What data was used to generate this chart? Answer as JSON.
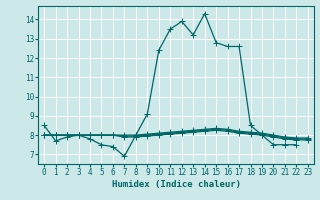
{
  "xlabel": "Humidex (Indice chaleur)",
  "background_color": "#cce8e8",
  "grid_color": "#ffffff",
  "line_color": "#006666",
  "xlim": [
    -0.5,
    23.5
  ],
  "ylim": [
    6.5,
    14.7
  ],
  "xticks": [
    0,
    1,
    2,
    3,
    4,
    5,
    6,
    7,
    8,
    9,
    10,
    11,
    12,
    13,
    14,
    15,
    16,
    17,
    18,
    19,
    20,
    21,
    22,
    23
  ],
  "yticks": [
    7,
    8,
    9,
    10,
    11,
    12,
    13,
    14
  ],
  "series": [
    {
      "x": [
        0,
        1,
        2,
        3,
        4,
        5,
        6,
        7,
        8,
        9,
        10,
        11,
        12,
        13,
        14,
        15,
        16,
        17,
        18,
        19,
        20,
        21,
        22
      ],
      "y": [
        8.5,
        7.7,
        7.9,
        8.0,
        7.8,
        7.5,
        7.4,
        6.9,
        8.0,
        9.1,
        12.4,
        13.5,
        13.9,
        13.2,
        14.3,
        12.8,
        12.6,
        12.6,
        8.5,
        8.0,
        7.5,
        7.5,
        7.5
      ]
    },
    {
      "x": [
        0,
        1,
        2,
        3,
        4,
        5,
        6,
        7,
        8,
        9,
        10,
        11,
        12,
        13,
        14,
        15,
        16,
        17,
        18,
        19,
        20,
        21,
        22,
        23
      ],
      "y": [
        8.0,
        8.0,
        8.0,
        8.0,
        8.0,
        8.0,
        8.0,
        7.9,
        7.9,
        7.95,
        8.0,
        8.05,
        8.1,
        8.15,
        8.2,
        8.25,
        8.2,
        8.1,
        8.05,
        8.0,
        7.9,
        7.8,
        7.75,
        7.75
      ]
    },
    {
      "x": [
        0,
        1,
        2,
        3,
        4,
        5,
        6,
        7,
        8,
        9,
        10,
        11,
        12,
        13,
        14,
        15,
        16,
        17,
        18,
        19,
        20,
        21,
        22,
        23
      ],
      "y": [
        8.0,
        8.0,
        8.0,
        8.0,
        8.0,
        8.0,
        8.0,
        7.95,
        7.95,
        8.0,
        8.05,
        8.1,
        8.15,
        8.2,
        8.25,
        8.3,
        8.25,
        8.15,
        8.1,
        8.05,
        7.95,
        7.85,
        7.8,
        7.8
      ]
    },
    {
      "x": [
        0,
        1,
        2,
        3,
        4,
        5,
        6,
        7,
        8,
        9,
        10,
        11,
        12,
        13,
        14,
        15,
        16,
        17,
        18,
        19,
        20,
        21,
        22,
        23
      ],
      "y": [
        8.0,
        8.0,
        8.0,
        8.0,
        8.0,
        8.0,
        8.0,
        8.0,
        8.0,
        8.05,
        8.1,
        8.15,
        8.2,
        8.25,
        8.3,
        8.35,
        8.3,
        8.2,
        8.15,
        8.1,
        8.0,
        7.9,
        7.85,
        7.85
      ]
    }
  ],
  "marker": "+",
  "markersize": 4,
  "linewidth": 0.9,
  "xlabel_fontsize": 6.5,
  "tick_fontsize": 5.5
}
